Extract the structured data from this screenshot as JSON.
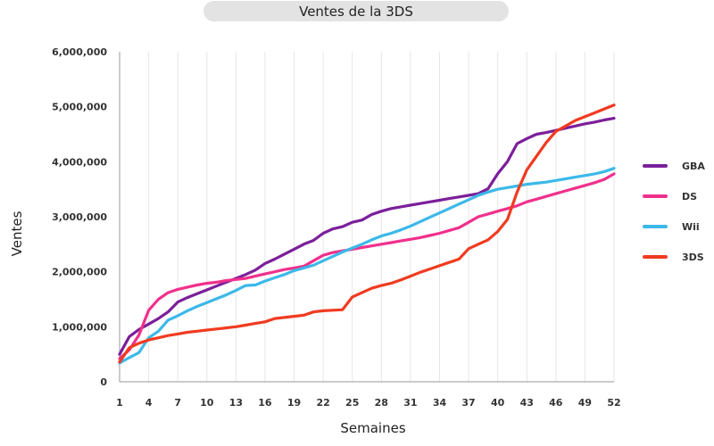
{
  "chart_data": {
    "type": "line",
    "title": "Ventes de la 3DS",
    "xlabel": "Semaines",
    "ylabel": "Ventes",
    "xlim": [
      1,
      52
    ],
    "ylim": [
      0,
      6000000
    ],
    "x_ticks": [
      1,
      4,
      7,
      10,
      13,
      16,
      19,
      22,
      25,
      28,
      31,
      34,
      37,
      40,
      43,
      46,
      49,
      52
    ],
    "y_ticks": [
      0,
      1000000,
      2000000,
      3000000,
      4000000,
      5000000,
      6000000
    ],
    "y_tick_labels": [
      "0",
      "1,000,000",
      "2,000,000",
      "3,000,000",
      "4,000,000",
      "5,000,000",
      "6,000,000"
    ],
    "grid": {
      "x": true,
      "y": false
    },
    "legend": "right",
    "x": [
      1,
      2,
      3,
      4,
      5,
      6,
      7,
      8,
      9,
      10,
      11,
      12,
      13,
      14,
      15,
      16,
      17,
      18,
      19,
      20,
      21,
      22,
      23,
      24,
      25,
      26,
      27,
      28,
      29,
      30,
      31,
      32,
      33,
      34,
      35,
      36,
      37,
      38,
      39,
      40,
      41,
      42,
      43,
      44,
      45,
      46,
      47,
      48,
      49,
      50,
      51,
      52
    ],
    "series": [
      {
        "name": "GBA",
        "color": "#7b1f9a",
        "values": [
          500000,
          820000,
          950000,
          1050000,
          1150000,
          1270000,
          1450000,
          1530000,
          1600000,
          1670000,
          1740000,
          1810000,
          1880000,
          1950000,
          2030000,
          2150000,
          2230000,
          2320000,
          2410000,
          2500000,
          2570000,
          2700000,
          2780000,
          2820000,
          2900000,
          2940000,
          3040000,
          3100000,
          3150000,
          3180000,
          3210000,
          3240000,
          3270000,
          3300000,
          3330000,
          3360000,
          3390000,
          3420000,
          3510000,
          3780000,
          4000000,
          4330000,
          4420000,
          4500000,
          4530000,
          4570000,
          4610000,
          4650000,
          4690000,
          4720000,
          4760000,
          4790000
        ]
      },
      {
        "name": "DS",
        "color": "#f0308c",
        "values": [
          420000,
          580000,
          850000,
          1300000,
          1500000,
          1620000,
          1680000,
          1720000,
          1760000,
          1790000,
          1810000,
          1840000,
          1860000,
          1880000,
          1920000,
          1960000,
          2000000,
          2040000,
          2070000,
          2100000,
          2200000,
          2300000,
          2350000,
          2380000,
          2410000,
          2440000,
          2470000,
          2500000,
          2530000,
          2560000,
          2590000,
          2620000,
          2660000,
          2700000,
          2750000,
          2800000,
          2900000,
          3000000,
          3050000,
          3100000,
          3150000,
          3200000,
          3270000,
          3320000,
          3370000,
          3420000,
          3470000,
          3520000,
          3570000,
          3620000,
          3680000,
          3780000
        ]
      },
      {
        "name": "Wii",
        "color": "#3cb9e8",
        "values": [
          340000,
          440000,
          530000,
          800000,
          920000,
          1120000,
          1200000,
          1290000,
          1370000,
          1440000,
          1510000,
          1580000,
          1660000,
          1750000,
          1760000,
          1830000,
          1890000,
          1950000,
          2020000,
          2070000,
          2120000,
          2200000,
          2280000,
          2360000,
          2430000,
          2500000,
          2580000,
          2650000,
          2700000,
          2760000,
          2830000,
          2910000,
          2990000,
          3070000,
          3150000,
          3230000,
          3310000,
          3390000,
          3450000,
          3500000,
          3530000,
          3560000,
          3590000,
          3610000,
          3630000,
          3660000,
          3690000,
          3720000,
          3750000,
          3780000,
          3820000,
          3880000
        ]
      },
      {
        "name": "3DS",
        "color": "#f03b20",
        "values": [
          360000,
          620000,
          700000,
          760000,
          800000,
          840000,
          870000,
          900000,
          920000,
          940000,
          960000,
          980000,
          1000000,
          1030000,
          1060000,
          1090000,
          1150000,
          1170000,
          1190000,
          1210000,
          1270000,
          1290000,
          1300000,
          1310000,
          1540000,
          1620000,
          1700000,
          1750000,
          1790000,
          1850000,
          1920000,
          1990000,
          2050000,
          2110000,
          2170000,
          2230000,
          2420000,
          2500000,
          2580000,
          2730000,
          2950000,
          3450000,
          3850000,
          4100000,
          4350000,
          4550000,
          4650000,
          4750000,
          4820000,
          4890000,
          4960000,
          5030000
        ]
      }
    ]
  }
}
